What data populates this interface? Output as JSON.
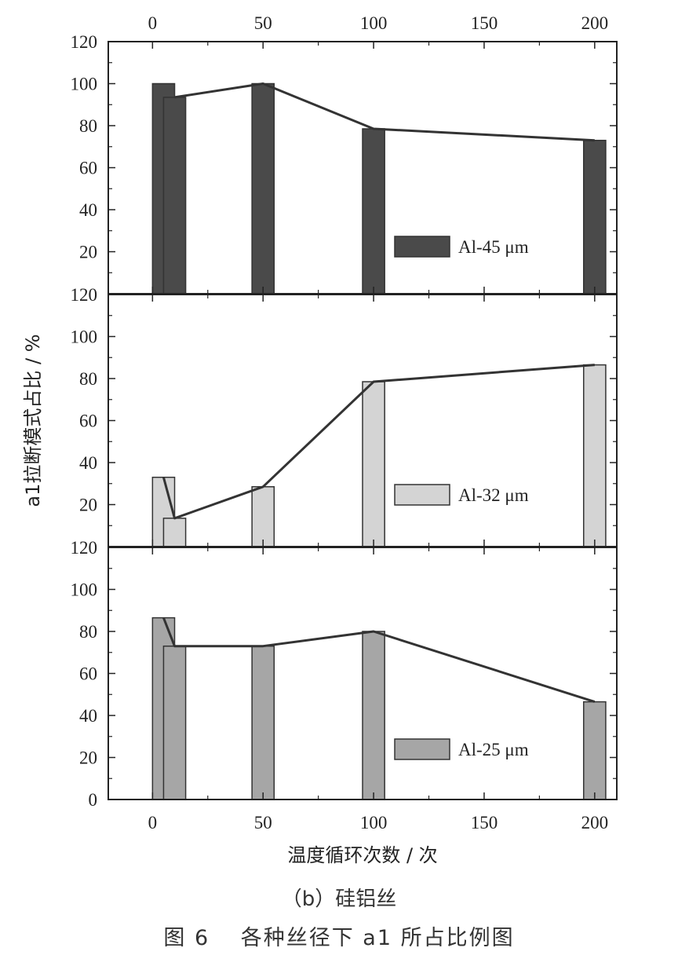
{
  "chart_data": {
    "type": "bar",
    "x_axis_label": "温度循环次数 / 次",
    "y_axis_label": "a1拉断模式占比 / %",
    "xlim": [
      -20,
      210
    ],
    "x_ticks": [
      0,
      50,
      100,
      150,
      200
    ],
    "ylim": [
      0,
      120
    ],
    "y_ticks": [
      0,
      20,
      40,
      60,
      80,
      100
    ],
    "top_tick_label": "120",
    "bar_width": 10,
    "panels": [
      {
        "name": "Al-45 μm",
        "legend_label": "Al-45  μm",
        "color": "#4a4a4a",
        "bars": [
          {
            "x": 5,
            "value": 100
          },
          {
            "x": 10,
            "value": 93.5
          },
          {
            "x": 50,
            "value": 100
          },
          {
            "x": 100,
            "value": 78.5
          },
          {
            "x": 200,
            "value": 73
          }
        ],
        "line": [
          [
            10,
            93.5
          ],
          [
            50,
            100
          ],
          [
            100,
            78.5
          ],
          [
            200,
            73
          ]
        ]
      },
      {
        "name": "Al-32 μm",
        "legend_label": "Al-32  μm",
        "color": "#d4d4d4",
        "bars": [
          {
            "x": 5,
            "value": 33
          },
          {
            "x": 10,
            "value": 13.5
          },
          {
            "x": 50,
            "value": 28.5
          },
          {
            "x": 100,
            "value": 78.5
          },
          {
            "x": 200,
            "value": 86.5
          }
        ],
        "line": [
          [
            5,
            33
          ],
          [
            10,
            13.5
          ],
          [
            50,
            28.5
          ],
          [
            100,
            78.5
          ],
          [
            200,
            86.5
          ]
        ]
      },
      {
        "name": "Al-25 μm",
        "legend_label": "Al-25  μm",
        "color": "#a6a6a6",
        "bars": [
          {
            "x": 5,
            "value": 86.5
          },
          {
            "x": 10,
            "value": 73
          },
          {
            "x": 50,
            "value": 73
          },
          {
            "x": 100,
            "value": 80
          },
          {
            "x": 200,
            "value": 46.5
          }
        ],
        "line": [
          [
            5,
            86.5
          ],
          [
            10,
            73
          ],
          [
            50,
            73
          ],
          [
            100,
            80
          ],
          [
            200,
            46.5
          ]
        ]
      }
    ]
  },
  "captions": {
    "sub": "（b）硅铝丝",
    "figure": "图 6　 各种丝径下 a1 所占比例图"
  }
}
